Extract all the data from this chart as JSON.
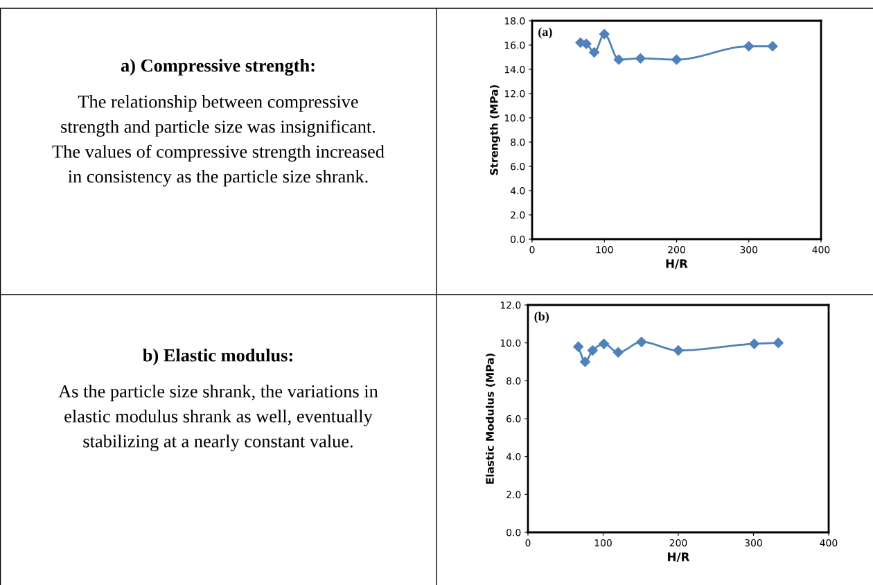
{
  "chart_data": [
    {
      "type": "other",
      "title": "a) Compressive strength:",
      "annotations": [
        "The relationship between compressive",
        "strength and particle size was insignificant.",
        "The values of compressive strength increased",
        "in consistency as the particle size shrank."
      ]
    },
    {
      "type": "line",
      "xlabel": "H/R",
      "ylabel": "Strength (MPa)",
      "annotations": [
        "(a)"
      ],
      "x": [
        67,
        75,
        86,
        100,
        120,
        150,
        200,
        300,
        333
      ],
      "series": [
        {
          "color": "#4f81bd",
          "values": [
            16.2,
            16.1,
            15.4,
            16.9,
            14.8,
            14.9,
            14.8,
            15.9,
            15.9
          ]
        }
      ],
      "xlim": [
        0,
        400
      ],
      "xticks": [
        0,
        100,
        200,
        300,
        400
      ],
      "ylim": [
        0,
        18
      ],
      "yticks": [
        {
          "value": 0,
          "label": "0.0"
        },
        {
          "value": 2,
          "label": "2.0"
        },
        {
          "value": 4,
          "label": "4.0"
        },
        {
          "value": 6,
          "label": "6.0"
        },
        {
          "value": 8,
          "label": "8.0"
        },
        {
          "value": 10,
          "label": "10.0"
        },
        {
          "value": 12,
          "label": "12.0"
        },
        {
          "value": 14,
          "label": "14.0"
        },
        {
          "value": 16,
          "label": "16.0"
        },
        {
          "value": 18,
          "label": "18.0"
        }
      ],
      "marker": "diamond",
      "grid": false
    },
    {
      "type": "other",
      "title": "b) Elastic modulus:",
      "annotations": [
        "As the particle size shrank, the variations in",
        "elastic modulus shrank as well, eventually",
        "stabilizing at a nearly constant value."
      ]
    },
    {
      "type": "line",
      "xlabel": "H/R",
      "ylabel": "Elastic Modulus (MPa)",
      "annotations": [
        "(b)"
      ],
      "x": [
        67,
        76,
        86,
        101,
        120,
        151,
        200,
        301,
        333
      ],
      "series": [
        {
          "color": "#4f81bd",
          "values": [
            9.8,
            9.0,
            9.6,
            9.95,
            9.5,
            10.05,
            9.6,
            9.95,
            10.0
          ]
        }
      ],
      "xlim": [
        0,
        400
      ],
      "xticks": [
        0,
        100,
        200,
        300,
        400
      ],
      "ylim": [
        0,
        12
      ],
      "yticks": [
        {
          "value": 0,
          "label": "0.0"
        },
        {
          "value": 2,
          "label": "2.0"
        },
        {
          "value": 4,
          "label": "4.0"
        },
        {
          "value": 6,
          "label": "6.0"
        },
        {
          "value": 8,
          "label": "8.0"
        },
        {
          "value": 10,
          "label": "10.0"
        },
        {
          "value": 12,
          "label": "12.0"
        }
      ],
      "marker": "diamond",
      "grid": false
    }
  ]
}
